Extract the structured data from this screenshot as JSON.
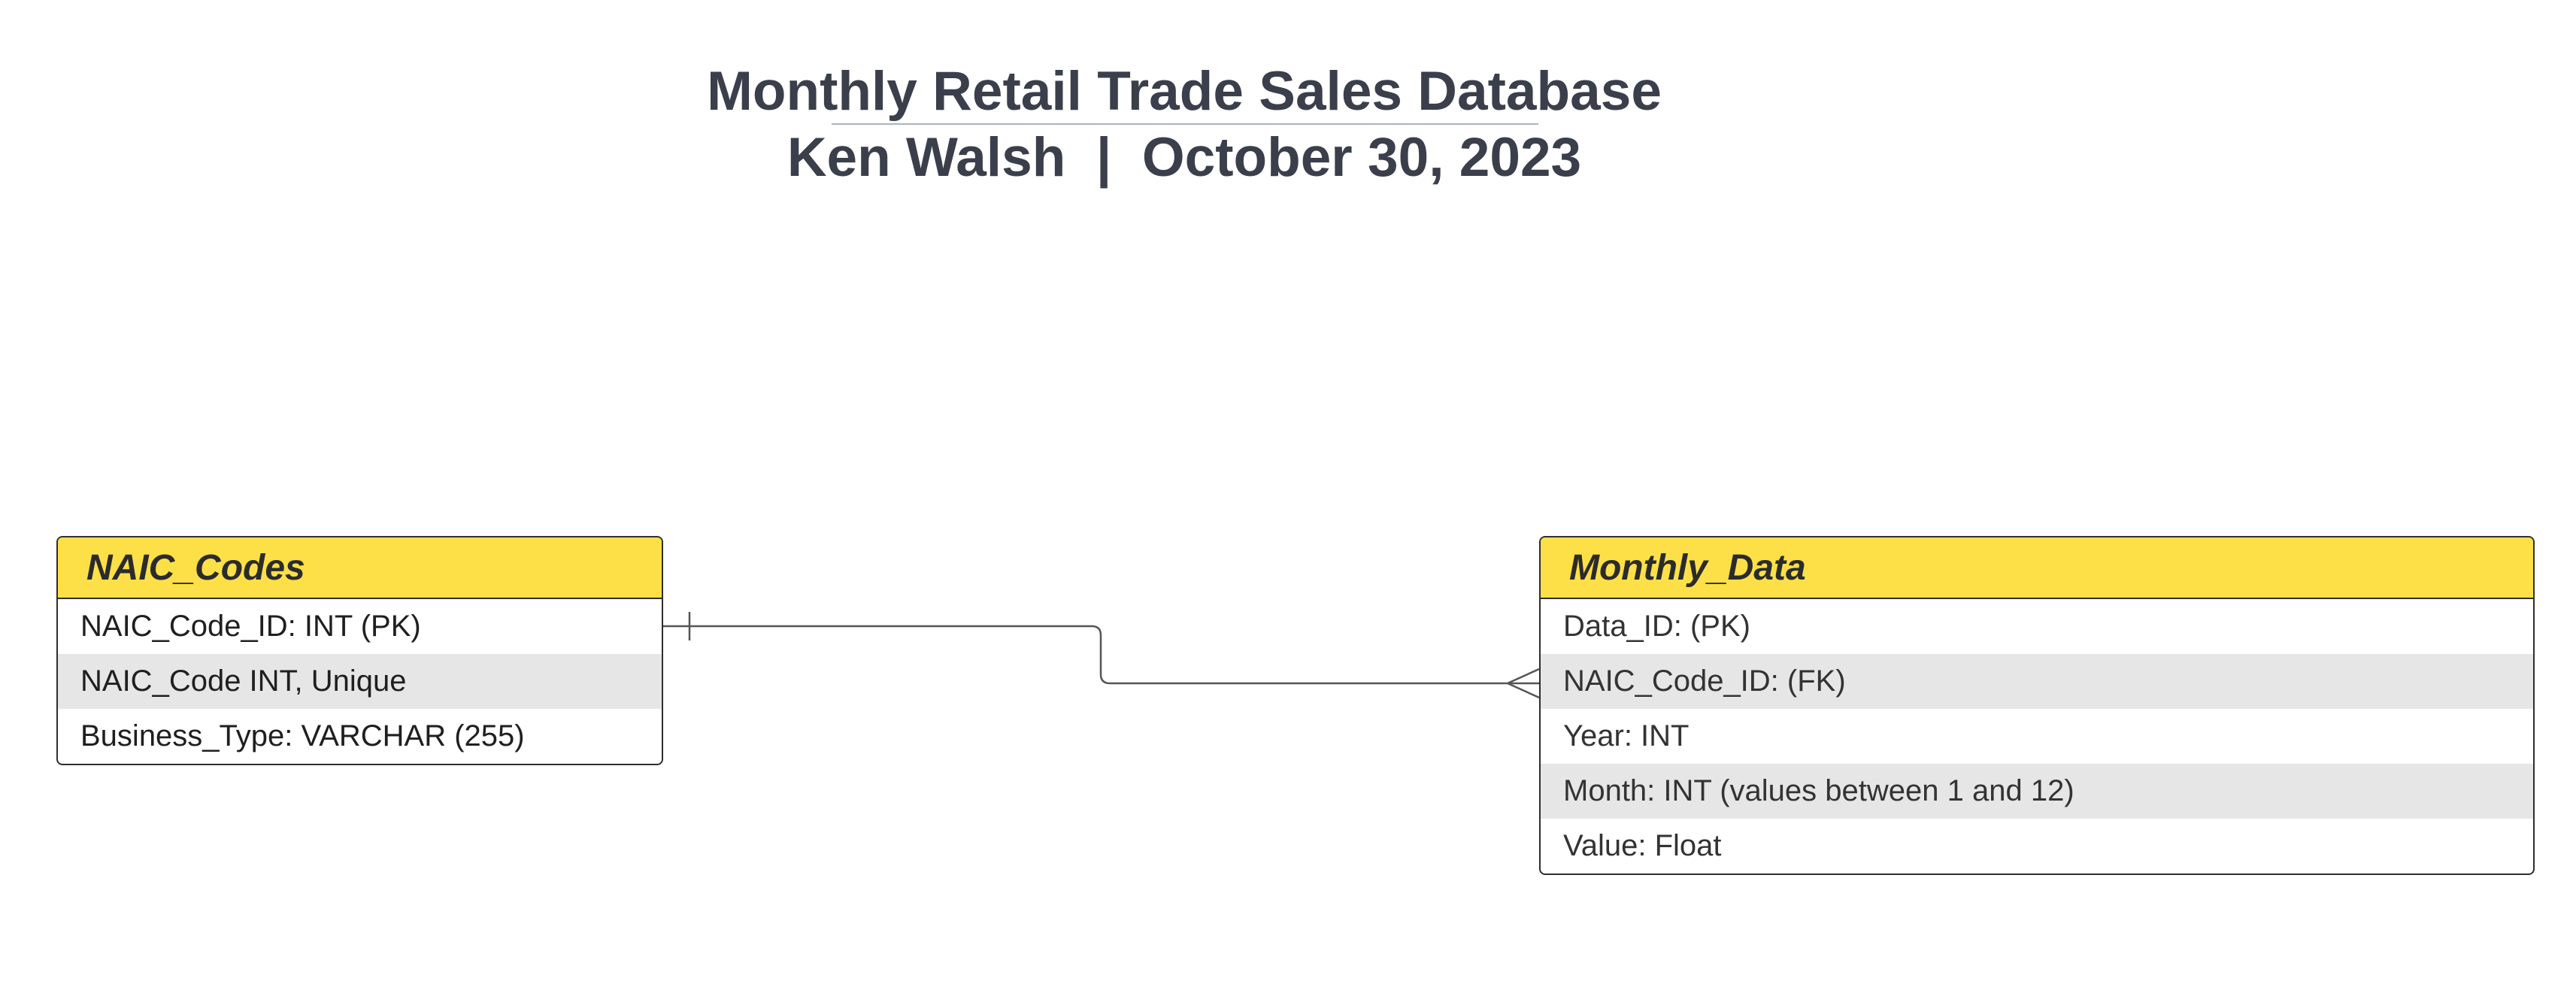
{
  "title": {
    "line1": "Monthly Retail Trade Sales Database",
    "line2": "Ken Walsh  |  October 30, 2023"
  },
  "entities": [
    {
      "name": "NAIC_Codes",
      "attributes": [
        "NAIC_Code_ID: INT (PK)",
        "NAIC_Code INT, Unique",
        "Business_Type: VARCHAR (255)"
      ]
    },
    {
      "name": "Monthly_Data",
      "attributes": [
        "Data_ID: (PK)",
        "NAIC_Code_ID: (FK)",
        "Year: INT",
        "Month: INT (values between 1 and 12)",
        "Value: Float"
      ]
    }
  ],
  "relationship": {
    "from": "NAIC_Codes",
    "to": "Monthly_Data",
    "from_cardinality": "one",
    "to_cardinality": "many"
  },
  "colors": {
    "header_fill": "#fde047",
    "shaded_row": "#e6e6e6",
    "title_text": "#3a3f4b",
    "border": "#2e2e2e"
  }
}
